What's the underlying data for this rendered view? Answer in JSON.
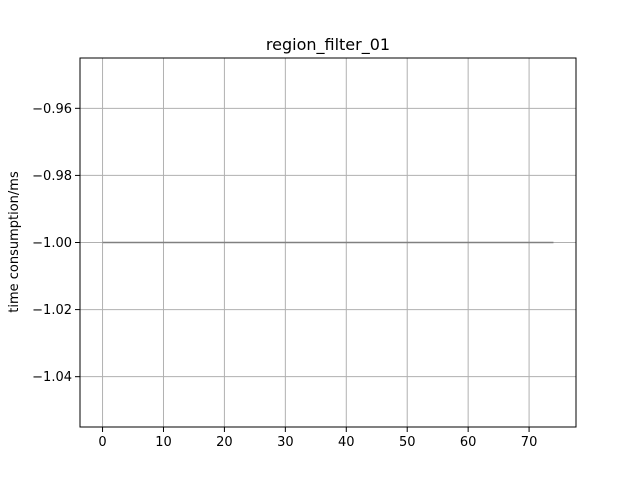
{
  "chart_data": {
    "type": "line",
    "title": "region_filter_01",
    "xlabel": "",
    "ylabel": "time consumption/ms",
    "xlim": [
      -3.7,
      77.7
    ],
    "ylim": [
      -1.055,
      -0.945
    ],
    "xticks": [
      0,
      10,
      20,
      30,
      40,
      50,
      60,
      70
    ],
    "xtick_labels": [
      "0",
      "10",
      "20",
      "30",
      "40",
      "50",
      "60",
      "70"
    ],
    "yticks": [
      -0.96,
      -0.98,
      -1.0,
      -1.02,
      -1.04
    ],
    "ytick_labels": [
      "−0.96",
      "−0.98",
      "−1.00",
      "−1.02",
      "−1.04"
    ],
    "grid": true,
    "series": [
      {
        "color": "#808080",
        "x": [
          0,
          74
        ],
        "values": [
          -1.0,
          -1.0
        ]
      }
    ]
  },
  "colors": {
    "grid": "#b0b0b0",
    "axes": "#000000",
    "background": "#ffffff"
  }
}
